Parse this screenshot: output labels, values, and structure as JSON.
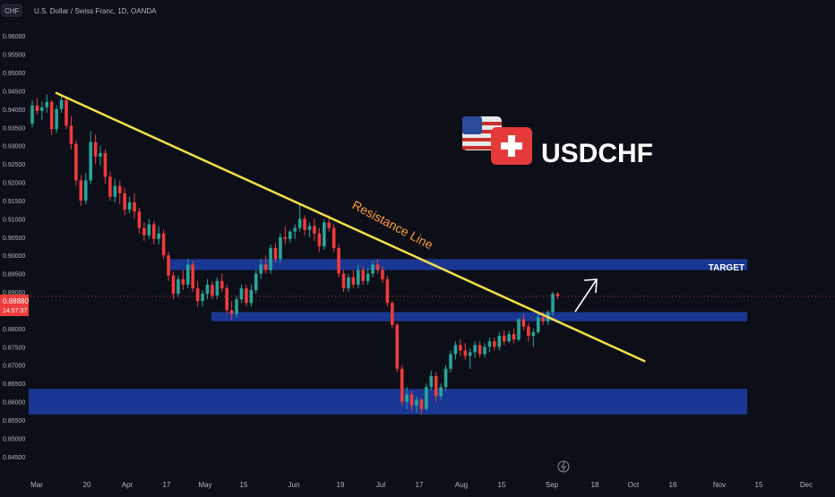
{
  "header": {
    "currency_badge": "CHF",
    "symbol_description": "U.S. Dollar / Swiss Franc, 1D, OANDA"
  },
  "price_tag": {
    "price": "0.88880",
    "countdown": "14:57:37"
  },
  "title_block": {
    "pair": "USDCHF",
    "flags": [
      "us-flag-icon",
      "swiss-flag-icon"
    ]
  },
  "annotations": {
    "resistance_label": "Resistance Line",
    "target_label": "TARGET"
  },
  "colors": {
    "background": "#0d0f18",
    "up_candle": "#26a69a",
    "down_candle": "#ef3b3b",
    "trendline": "#f5e048",
    "zone": "#1c3ea8",
    "label_orange": "#ff9a3c",
    "axis_text": "#b2b5be"
  },
  "chart_data": {
    "type": "candlestick",
    "y_axis": {
      "ylim": [
        0.8425,
        0.9625
      ],
      "ticks": [
        "0.96000",
        "0.95500",
        "0.95000",
        "0.94500",
        "0.94000",
        "0.93500",
        "0.93000",
        "0.92500",
        "0.92000",
        "0.91500",
        "0.91000",
        "0.90500",
        "0.90000",
        "0.89500",
        "0.89000",
        "0.88500",
        "0.88000",
        "0.87500",
        "0.87000",
        "0.86500",
        "0.86000",
        "0.85500",
        "0.85000",
        "0.84500"
      ]
    },
    "x_axis": {
      "tick_labels": [
        "Mar",
        "20",
        "Apr",
        "17",
        "May",
        "15",
        "Jun",
        "19",
        "Jul",
        "17",
        "Aug",
        "15",
        "Sep",
        "18",
        "Oct",
        "16",
        "Nov",
        "15",
        "Dec"
      ]
    },
    "candles": [
      [
        0.936,
        0.9425,
        0.935,
        0.941
      ],
      [
        0.941,
        0.943,
        0.9385,
        0.9395
      ],
      [
        0.9395,
        0.942,
        0.937,
        0.9405
      ],
      [
        0.9405,
        0.944,
        0.939,
        0.942
      ],
      [
        0.942,
        0.9425,
        0.933,
        0.9345
      ],
      [
        0.9345,
        0.941,
        0.9335,
        0.94
      ],
      [
        0.94,
        0.9435,
        0.939,
        0.9425
      ],
      [
        0.9425,
        0.943,
        0.9345,
        0.9355
      ],
      [
        0.9355,
        0.938,
        0.929,
        0.9305
      ],
      [
        0.9305,
        0.9315,
        0.919,
        0.9205
      ],
      [
        0.9205,
        0.922,
        0.9135,
        0.915
      ],
      [
        0.915,
        0.9225,
        0.914,
        0.9205
      ],
      [
        0.9205,
        0.934,
        0.9195,
        0.931
      ],
      [
        0.931,
        0.933,
        0.925,
        0.927
      ],
      [
        0.927,
        0.93,
        0.9245,
        0.928
      ],
      [
        0.928,
        0.929,
        0.9195,
        0.9215
      ],
      [
        0.9215,
        0.923,
        0.915,
        0.916
      ],
      [
        0.916,
        0.921,
        0.9145,
        0.919
      ],
      [
        0.919,
        0.9205,
        0.914,
        0.917
      ],
      [
        0.917,
        0.9185,
        0.911,
        0.9125
      ],
      [
        0.9125,
        0.916,
        0.9115,
        0.9145
      ],
      [
        0.9145,
        0.917,
        0.91,
        0.912
      ],
      [
        0.912,
        0.913,
        0.906,
        0.9075
      ],
      [
        0.9075,
        0.909,
        0.904,
        0.9055
      ],
      [
        0.9055,
        0.91,
        0.9045,
        0.9085
      ],
      [
        0.9085,
        0.9095,
        0.903,
        0.9045
      ],
      [
        0.9045,
        0.908,
        0.903,
        0.906
      ],
      [
        0.906,
        0.907,
        0.899,
        0.9
      ],
      [
        0.9,
        0.901,
        0.893,
        0.8945
      ],
      [
        0.8945,
        0.8955,
        0.888,
        0.8895
      ],
      [
        0.8895,
        0.8945,
        0.8885,
        0.8935
      ],
      [
        0.8935,
        0.896,
        0.8905,
        0.892
      ],
      [
        0.892,
        0.899,
        0.891,
        0.8975
      ],
      [
        0.8975,
        0.8985,
        0.89,
        0.891
      ],
      [
        0.891,
        0.893,
        0.886,
        0.8875
      ],
      [
        0.8875,
        0.8905,
        0.886,
        0.8895
      ],
      [
        0.8895,
        0.8935,
        0.888,
        0.892
      ],
      [
        0.892,
        0.893,
        0.888,
        0.889
      ],
      [
        0.889,
        0.894,
        0.888,
        0.893
      ],
      [
        0.893,
        0.895,
        0.89,
        0.891
      ],
      [
        0.891,
        0.892,
        0.884,
        0.885
      ],
      [
        0.885,
        0.8875,
        0.8825,
        0.884
      ],
      [
        0.884,
        0.889,
        0.883,
        0.888
      ],
      [
        0.888,
        0.892,
        0.887,
        0.891
      ],
      [
        0.891,
        0.892,
        0.886,
        0.887
      ],
      [
        0.887,
        0.892,
        0.886,
        0.8905
      ],
      [
        0.8905,
        0.896,
        0.8895,
        0.895
      ],
      [
        0.895,
        0.899,
        0.8935,
        0.8975
      ],
      [
        0.8975,
        0.9,
        0.895,
        0.896
      ],
      [
        0.896,
        0.903,
        0.895,
        0.902
      ],
      [
        0.902,
        0.9035,
        0.898,
        0.899
      ],
      [
        0.899,
        0.906,
        0.898,
        0.905
      ],
      [
        0.905,
        0.908,
        0.903,
        0.9045
      ],
      [
        0.9045,
        0.907,
        0.9035,
        0.9065
      ],
      [
        0.9065,
        0.9085,
        0.9045,
        0.9075
      ],
      [
        0.9075,
        0.914,
        0.9065,
        0.91
      ],
      [
        0.91,
        0.911,
        0.9055,
        0.907
      ],
      [
        0.907,
        0.909,
        0.905,
        0.908
      ],
      [
        0.908,
        0.91,
        0.904,
        0.906
      ],
      [
        0.906,
        0.9075,
        0.901,
        0.9025
      ],
      [
        0.9025,
        0.91,
        0.9015,
        0.909
      ],
      [
        0.909,
        0.911,
        0.9065,
        0.9075
      ],
      [
        0.9075,
        0.9085,
        0.901,
        0.902
      ],
      [
        0.902,
        0.903,
        0.894,
        0.895
      ],
      [
        0.895,
        0.896,
        0.89,
        0.891
      ],
      [
        0.891,
        0.895,
        0.89,
        0.894
      ],
      [
        0.894,
        0.896,
        0.891,
        0.892
      ],
      [
        0.892,
        0.8975,
        0.891,
        0.896
      ],
      [
        0.896,
        0.897,
        0.892,
        0.893
      ],
      [
        0.893,
        0.8965,
        0.892,
        0.895
      ],
      [
        0.895,
        0.8985,
        0.894,
        0.8975
      ],
      [
        0.8975,
        0.899,
        0.895,
        0.896
      ],
      [
        0.896,
        0.897,
        0.8925,
        0.8935
      ],
      [
        0.8935,
        0.8945,
        0.886,
        0.887
      ],
      [
        0.887,
        0.8875,
        0.88,
        0.881
      ],
      [
        0.881,
        0.8815,
        0.868,
        0.869
      ],
      [
        0.869,
        0.87,
        0.859,
        0.86
      ],
      [
        0.86,
        0.864,
        0.858,
        0.862
      ],
      [
        0.862,
        0.863,
        0.8575,
        0.859
      ],
      [
        0.859,
        0.8615,
        0.857,
        0.8605
      ],
      [
        0.8605,
        0.861,
        0.8565,
        0.858
      ],
      [
        0.858,
        0.865,
        0.8575,
        0.864
      ],
      [
        0.864,
        0.8685,
        0.863,
        0.867
      ],
      [
        0.867,
        0.868,
        0.86,
        0.8615
      ],
      [
        0.8615,
        0.865,
        0.8605,
        0.864
      ],
      [
        0.864,
        0.87,
        0.863,
        0.869
      ],
      [
        0.869,
        0.874,
        0.868,
        0.873
      ],
      [
        0.873,
        0.8765,
        0.8715,
        0.8755
      ],
      [
        0.8755,
        0.877,
        0.8725,
        0.874
      ],
      [
        0.874,
        0.876,
        0.8715,
        0.8725
      ],
      [
        0.8725,
        0.8745,
        0.869,
        0.8735
      ],
      [
        0.8735,
        0.8765,
        0.872,
        0.8755
      ],
      [
        0.8755,
        0.8765,
        0.872,
        0.873
      ],
      [
        0.873,
        0.876,
        0.872,
        0.875
      ],
      [
        0.875,
        0.8775,
        0.8735,
        0.8765
      ],
      [
        0.8765,
        0.8775,
        0.874,
        0.875
      ],
      [
        0.875,
        0.879,
        0.874,
        0.878
      ],
      [
        0.878,
        0.8795,
        0.8755,
        0.8765
      ],
      [
        0.8765,
        0.8795,
        0.876,
        0.8785
      ],
      [
        0.8785,
        0.88,
        0.876,
        0.877
      ],
      [
        0.877,
        0.883,
        0.8765,
        0.8825
      ],
      [
        0.8825,
        0.884,
        0.8795,
        0.8805
      ],
      [
        0.8805,
        0.8815,
        0.8765,
        0.878
      ],
      [
        0.878,
        0.88,
        0.875,
        0.879
      ],
      [
        0.879,
        0.884,
        0.8785,
        0.883
      ],
      [
        0.883,
        0.8845,
        0.881,
        0.882
      ],
      [
        0.882,
        0.885,
        0.881,
        0.8845
      ],
      [
        0.8845,
        0.89,
        0.8835,
        0.8895
      ],
      [
        0.8895,
        0.89,
        0.888,
        0.8888
      ]
    ],
    "zones": [
      {
        "from": 0.896,
        "to": 0.899
      },
      {
        "from": 0.882,
        "to": 0.8845
      },
      {
        "from": 0.8565,
        "to": 0.8635
      }
    ],
    "trendline": {
      "from": [
        0,
        0.9445
      ],
      "to": [
        168,
        0.871
      ]
    },
    "current_price": 0.8888
  }
}
